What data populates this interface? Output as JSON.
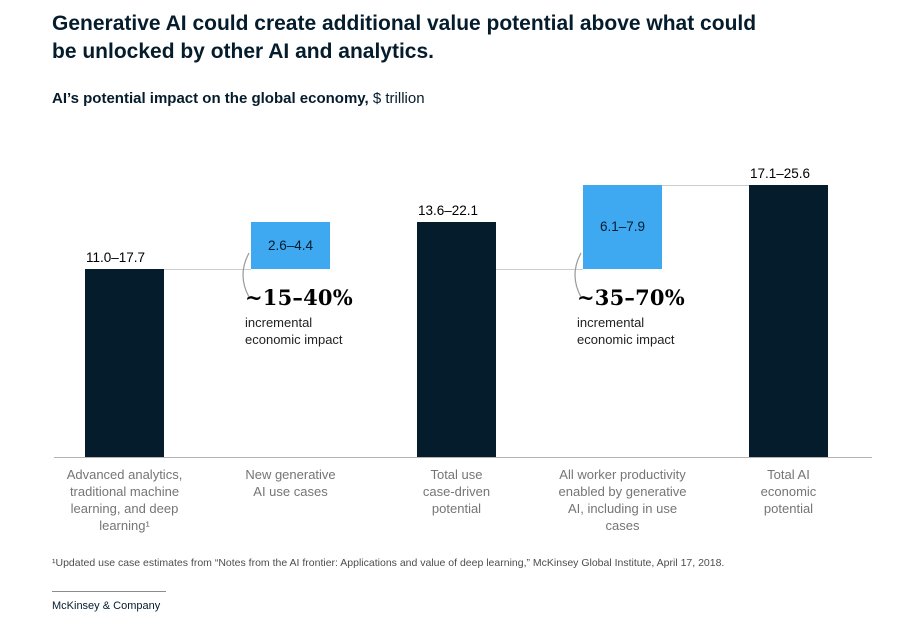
{
  "header": {
    "title": "Generative AI could create additional value potential above what could be unlocked by other AI and analytics.",
    "subtitle_bold": "AI’s potential impact on the global economy,",
    "subtitle_unit": " $ trillion"
  },
  "chart_data": {
    "type": "bar",
    "subtype": "waterfall",
    "title": "AI’s potential impact on the global economy",
    "unit": "$ trillion",
    "ylim": [
      0,
      25.6
    ],
    "grid": false,
    "legend": "none",
    "categories": [
      "Advanced analytics, traditional machine learning, and deep learning¹",
      "New generative AI use cases",
      "Total use case-driven potential",
      "All worker productivity enabled by generative AI, including in use cases",
      "Total AI economic potential"
    ],
    "ranges": [
      [
        11.0,
        17.7
      ],
      [
        2.6,
        4.4
      ],
      [
        13.6,
        22.1
      ],
      [
        6.1,
        7.9
      ],
      [
        17.1,
        25.6
      ]
    ],
    "bars": [
      {
        "category_lines": [
          "Advanced analytics,",
          "traditional machine",
          "learning, and deep",
          "learning¹"
        ],
        "value_label": "11.0–17.7",
        "range_low": 11.0,
        "range_high": 17.7,
        "start": 0,
        "end": 17.7,
        "style": "navy",
        "label_position": "above"
      },
      {
        "category_lines": [
          "New generative",
          "AI use cases"
        ],
        "value_label": "2.6–4.4",
        "range_low": 2.6,
        "range_high": 4.4,
        "start": 17.7,
        "end": 22.1,
        "style": "blue",
        "label_position": "inside",
        "annotation": {
          "headline": "~15–40%",
          "lines": [
            "incremental",
            "economic impact"
          ]
        }
      },
      {
        "category_lines": [
          "Total use",
          "case-driven",
          "potential"
        ],
        "value_label": "13.6–22.1",
        "range_low": 13.6,
        "range_high": 22.1,
        "start": 0,
        "end": 22.1,
        "style": "navy",
        "label_position": "above"
      },
      {
        "category_lines": [
          "All worker productivity",
          "enabled by generative",
          "AI, including in use",
          "cases"
        ],
        "value_label": "6.1–7.9",
        "range_low": 6.1,
        "range_high": 7.9,
        "start": 17.7,
        "end": 25.6,
        "style": "blue",
        "label_position": "inside",
        "annotation": {
          "headline": "~35–70%",
          "lines": [
            "incremental",
            "economic impact"
          ]
        }
      },
      {
        "category_lines": [
          "Total AI",
          "economic",
          "potential"
        ],
        "value_label": "17.1–25.6",
        "range_low": 17.1,
        "range_high": 25.6,
        "start": 0,
        "end": 25.6,
        "style": "navy",
        "label_position": "above"
      }
    ],
    "connectors": [
      {
        "level": 17.7,
        "from": 0,
        "to": 1
      },
      {
        "level": 17.7,
        "from": 2,
        "to": 3
      },
      {
        "level": 25.6,
        "from": 3,
        "to": 4
      }
    ]
  },
  "colors": {
    "navy": "#051C2C",
    "blue": "#3EA8F0",
    "axis": "#b3b3b3",
    "connector": "#cccccc",
    "category_text": "#757575",
    "value_text": "#000000"
  },
  "footnote_text": "¹Updated use case estimates from “Notes from the AI frontier: Applications and value of deep learning,” McKinsey Global Institute, April 17, 2018.",
  "brand_text": "McKinsey & Company"
}
